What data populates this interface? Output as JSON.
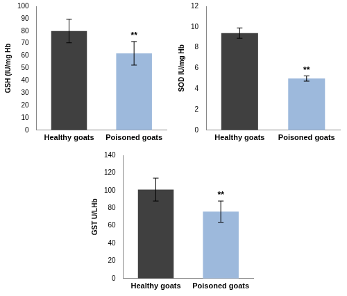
{
  "chart_data": [
    {
      "type": "bar",
      "ylabel": "GSH (IU/mg Hb",
      "categories": [
        "Healthy goats",
        "Poisoned goats"
      ],
      "values": [
        80,
        62
      ],
      "errors": [
        9.5,
        9.5
      ],
      "colors": [
        "#404040",
        "#9db9dc"
      ],
      "ylim": [
        0,
        100
      ],
      "yticks": [
        0,
        10,
        20,
        30,
        40,
        50,
        60,
        70,
        80,
        90,
        100
      ],
      "grid": false,
      "annotations": [
        {
          "category": "Poisoned goats",
          "text": "**"
        }
      ]
    },
    {
      "type": "bar",
      "ylabel": "SOD IU/mg Hb",
      "categories": [
        "Healthy goats",
        "Poisoned goats"
      ],
      "values": [
        9.4,
        5.0
      ],
      "errors": [
        0.5,
        0.25
      ],
      "colors": [
        "#404040",
        "#9db9dc"
      ],
      "ylim": [
        0,
        12
      ],
      "yticks": [
        0,
        2,
        4,
        6,
        8,
        10,
        12
      ],
      "grid": false,
      "annotations": [
        {
          "category": "Poisoned goats",
          "text": "**"
        }
      ]
    },
    {
      "type": "bar",
      "ylabel": "GST U/LHb",
      "categories": [
        "Healthy goats",
        "Poisoned goats"
      ],
      "values": [
        101,
        76
      ],
      "errors": [
        13,
        12
      ],
      "colors": [
        "#404040",
        "#9db9dc"
      ],
      "ylim": [
        0,
        140
      ],
      "yticks": [
        0,
        20,
        40,
        60,
        80,
        100,
        120,
        140
      ],
      "grid": false,
      "annotations": [
        {
          "category": "Poisoned goats",
          "text": "**"
        }
      ]
    }
  ]
}
